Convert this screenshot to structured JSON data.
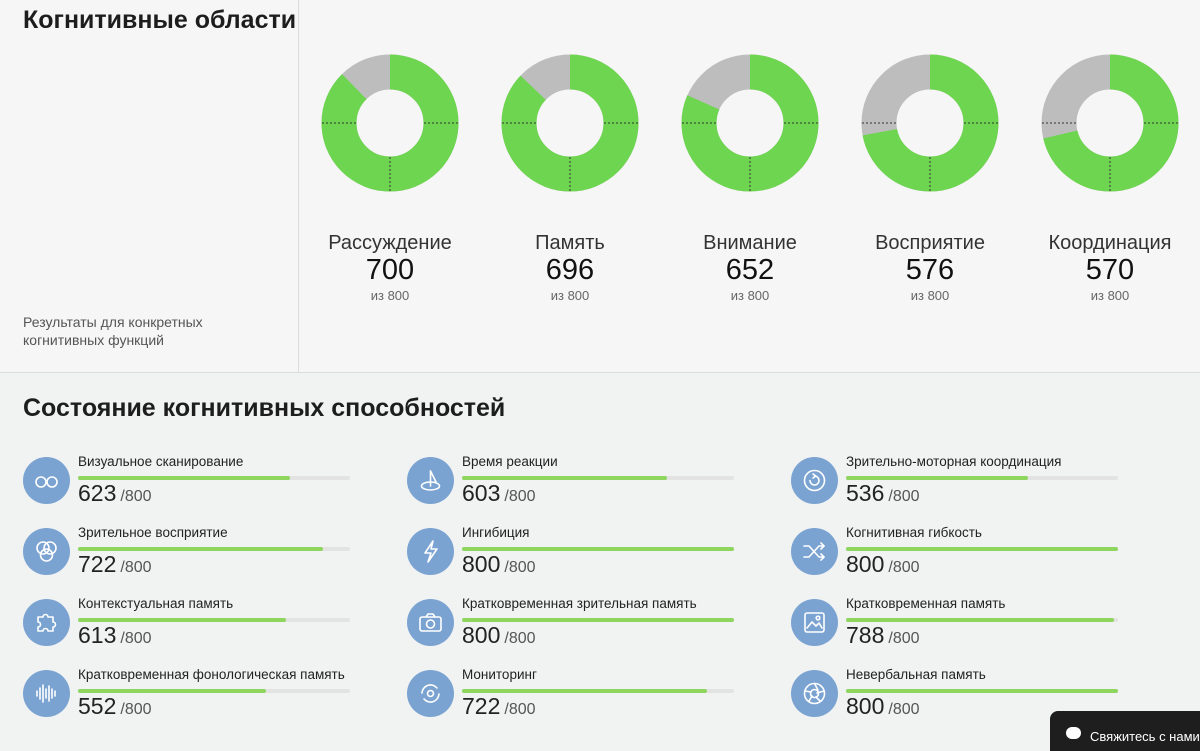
{
  "colors": {
    "accent_green": "#6dd54f",
    "rest_gray": "#bdbdbd",
    "icon_blue": "#7aa3d1",
    "bar_green": "#8ed65e"
  },
  "header": {
    "title": "Когнитивные области",
    "subtitle": "Результаты для конкретных когнитивных функций"
  },
  "domains": [
    {
      "name": "Рассуждение",
      "score": "700",
      "max": "из 800",
      "value": 700,
      "total": 800
    },
    {
      "name": "Память",
      "score": "696",
      "max": "из 800",
      "value": 696,
      "total": 800
    },
    {
      "name": "Внимание",
      "score": "652",
      "max": "из 800",
      "value": 652,
      "total": 800
    },
    {
      "name": "Восприятие",
      "score": "576",
      "max": "из 800",
      "value": 576,
      "total": 800
    },
    {
      "name": "Координация",
      "score": "570",
      "max": "из 800",
      "value": 570,
      "total": 800
    }
  ],
  "abilities": {
    "title": "Состояние когнитивных способностей",
    "columns": [
      [
        {
          "name": "Визуальное сканирование",
          "score": "623",
          "max": "/800",
          "value": 623,
          "icon": "glasses-icon"
        },
        {
          "name": "Зрительное восприятие",
          "score": "722",
          "max": "/800",
          "value": 722,
          "icon": "circles-icon"
        },
        {
          "name": "Контекстуальная память",
          "score": "613",
          "max": "/800",
          "value": 613,
          "icon": "puzzle-icon"
        },
        {
          "name": "Кратковременная фонологическая память",
          "score": "552",
          "max": "/800",
          "value": 552,
          "icon": "soundwave-icon"
        }
      ],
      [
        {
          "name": "Время реакции",
          "score": "603",
          "max": "/800",
          "value": 603,
          "icon": "dial-icon"
        },
        {
          "name": "Ингибиция",
          "score": "800",
          "max": "/800",
          "value": 800,
          "icon": "lightning-icon"
        },
        {
          "name": "Кратковременная зрительная память",
          "score": "800",
          "max": "/800",
          "value": 800,
          "icon": "camera-icon"
        },
        {
          "name": "Мониторинг",
          "score": "722",
          "max": "/800",
          "value": 722,
          "icon": "rotate-icon"
        }
      ],
      [
        {
          "name": "Зрительно-моторная координация",
          "score": "536",
          "max": "/800",
          "value": 536,
          "icon": "target-icon"
        },
        {
          "name": "Когнитивная гибкость",
          "score": "800",
          "max": "/800",
          "value": 800,
          "icon": "shuffle-icon"
        },
        {
          "name": "Кратковременная память",
          "score": "788",
          "max": "/800",
          "value": 788,
          "icon": "picture-icon"
        },
        {
          "name": "Невербальная память",
          "score": "800",
          "max": "/800",
          "value": 800,
          "icon": "aperture-icon"
        }
      ]
    ]
  },
  "chat": {
    "label": "Свяжитесь с нами"
  }
}
